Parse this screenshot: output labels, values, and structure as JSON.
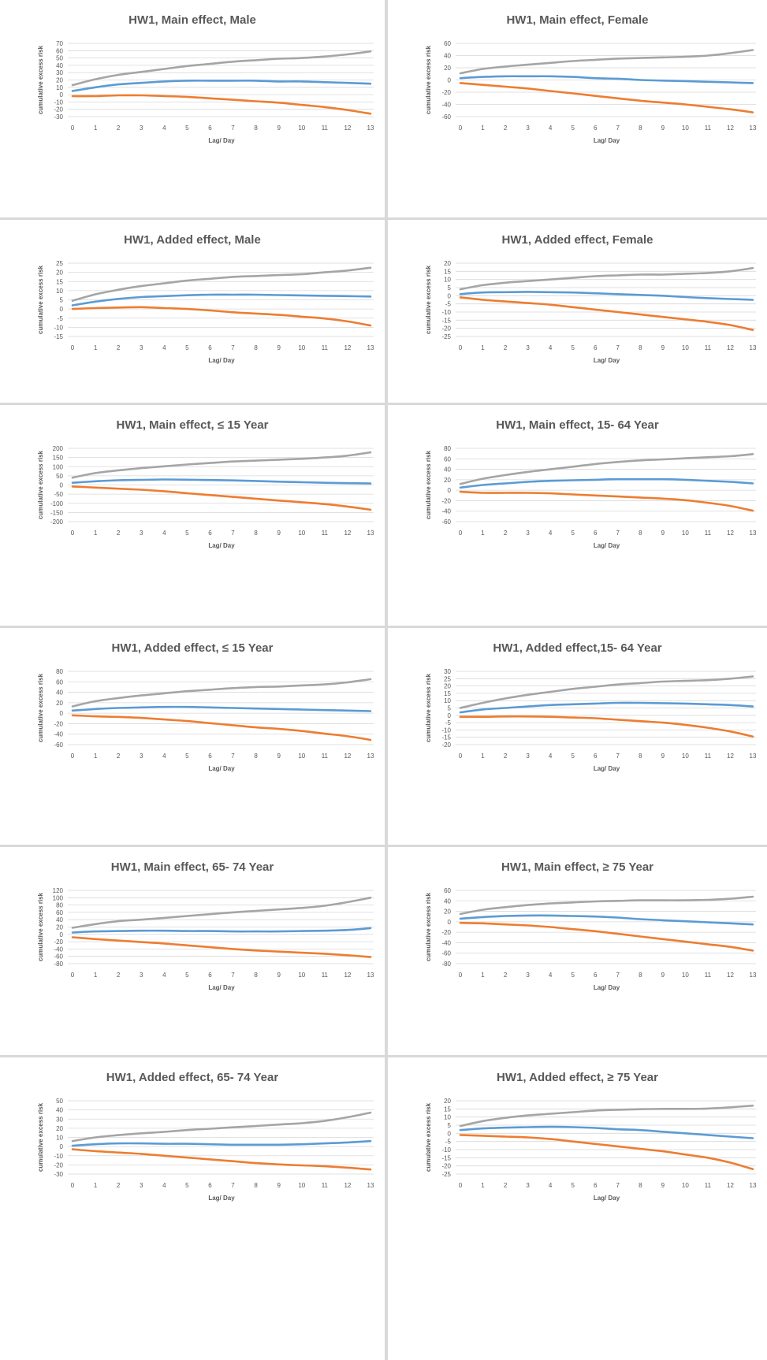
{
  "colors": {
    "upper": "#a5a5a5",
    "estimate": "#5b9bd5",
    "lower": "#ed7d31",
    "grid": "#d9d9d9"
  },
  "chart_data": [
    {
      "type": "line",
      "title": "HW1, Main effect, Male",
      "xlabel": "Lag/ Day",
      "ylabel": "cumulative excess risk",
      "x": [
        0,
        1,
        2,
        3,
        4,
        5,
        6,
        7,
        8,
        9,
        10,
        11,
        12,
        13
      ],
      "yticks": [
        -30,
        -20,
        -10,
        0,
        10,
        20,
        30,
        40,
        50,
        60,
        70
      ],
      "ylim": [
        -30,
        70
      ],
      "series": [
        {
          "role": "upper",
          "values": [
            13,
            21,
            27,
            31,
            35,
            39,
            42,
            45,
            47,
            49,
            50,
            52,
            55,
            59
          ]
        },
        {
          "role": "estimate",
          "values": [
            5,
            10,
            14,
            16,
            18,
            19,
            19,
            19,
            19,
            18,
            18,
            17,
            16,
            15
          ]
        },
        {
          "role": "lower",
          "values": [
            -2,
            -2,
            -1,
            -1,
            -2,
            -3,
            -5,
            -7,
            -9,
            -11,
            -14,
            -17,
            -21,
            -26
          ]
        }
      ]
    },
    {
      "type": "line",
      "title": "HW1, Main effect, Female",
      "xlabel": "Lag/ Day",
      "ylabel": "cumulative excess risk",
      "x": [
        0,
        1,
        2,
        3,
        4,
        5,
        6,
        7,
        8,
        9,
        10,
        11,
        12,
        13
      ],
      "yticks": [
        -60,
        -40,
        -20,
        0,
        20,
        40,
        60
      ],
      "ylim": [
        -60,
        60
      ],
      "series": [
        {
          "role": "upper",
          "values": [
            11,
            18,
            22,
            25,
            28,
            31,
            33,
            35,
            36,
            37,
            38,
            40,
            44,
            49
          ]
        },
        {
          "role": "estimate",
          "values": [
            3,
            5,
            6,
            6,
            6,
            5,
            3,
            2,
            0,
            -1,
            -2,
            -3,
            -4,
            -5
          ]
        },
        {
          "role": "lower",
          "values": [
            -5,
            -8,
            -11,
            -14,
            -18,
            -22,
            -26,
            -30,
            -34,
            -37,
            -40,
            -44,
            -48,
            -53
          ]
        }
      ]
    },
    {
      "type": "line",
      "title": "HW1, Added effect, Male",
      "xlabel": "Lag/ Day",
      "ylabel": "cumulative excess risk",
      "x": [
        0,
        1,
        2,
        3,
        4,
        5,
        6,
        7,
        8,
        9,
        10,
        11,
        12,
        13
      ],
      "yticks": [
        -15,
        -10,
        -5,
        0,
        5,
        10,
        15,
        20,
        25
      ],
      "ylim": [
        -15,
        25
      ],
      "series": [
        {
          "role": "upper",
          "values": [
            4.5,
            8,
            10.5,
            12.5,
            14,
            15.5,
            16.5,
            17.5,
            18,
            18.5,
            19,
            20,
            21,
            22.5
          ]
        },
        {
          "role": "estimate",
          "values": [
            2,
            4,
            5.5,
            6.5,
            7,
            7.5,
            7.8,
            7.8,
            7.8,
            7.6,
            7.4,
            7.2,
            7,
            6.8
          ]
        },
        {
          "role": "lower",
          "values": [
            0,
            0.5,
            0.8,
            1,
            0.5,
            0,
            -0.8,
            -1.8,
            -2.5,
            -3.2,
            -4.2,
            -5.2,
            -6.8,
            -9
          ]
        }
      ]
    },
    {
      "type": "line",
      "title": "HW1, Added effect, Female",
      "xlabel": "Lag/ Day",
      "ylabel": "cumulative excess risk",
      "x": [
        0,
        1,
        2,
        3,
        4,
        5,
        6,
        7,
        8,
        9,
        10,
        11,
        12,
        13
      ],
      "yticks": [
        -25,
        -20,
        -15,
        -10,
        -5,
        0,
        5,
        10,
        15,
        20
      ],
      "ylim": [
        -25,
        20
      ],
      "series": [
        {
          "role": "upper",
          "values": [
            4,
            6.5,
            8,
            9,
            10,
            11,
            12,
            12.5,
            13,
            13,
            13.5,
            14,
            15,
            17
          ]
        },
        {
          "role": "estimate",
          "values": [
            1,
            2,
            2.2,
            2.4,
            2.2,
            2,
            1.5,
            1,
            0.5,
            0,
            -0.8,
            -1.5,
            -2,
            -2.5
          ]
        },
        {
          "role": "lower",
          "values": [
            -1,
            -2.5,
            -3.5,
            -4.5,
            -5.5,
            -7,
            -8.5,
            -10,
            -11.5,
            -13,
            -14.5,
            -16,
            -18,
            -21
          ]
        }
      ]
    },
    {
      "type": "line",
      "title": "HW1, Main effect, ≤ 15 Year",
      "xlabel": "Lag/ Day",
      "ylabel": "cumulative excess risk",
      "x": [
        0,
        1,
        2,
        3,
        4,
        5,
        6,
        7,
        8,
        9,
        10,
        11,
        12,
        13
      ],
      "yticks": [
        -200,
        -150,
        -100,
        -50,
        0,
        50,
        100,
        150,
        200
      ],
      "ylim": [
        -200,
        200
      ],
      "series": [
        {
          "role": "upper",
          "values": [
            40,
            65,
            80,
            92,
            102,
            112,
            120,
            128,
            133,
            138,
            143,
            150,
            160,
            178
          ]
        },
        {
          "role": "estimate",
          "values": [
            12,
            20,
            26,
            28,
            30,
            29,
            27,
            25,
            22,
            18,
            15,
            12,
            10,
            8
          ]
        },
        {
          "role": "lower",
          "values": [
            -8,
            -14,
            -20,
            -26,
            -34,
            -45,
            -55,
            -65,
            -75,
            -85,
            -94,
            -104,
            -118,
            -135
          ]
        }
      ]
    },
    {
      "type": "line",
      "title": "HW1, Main effect, 15- 64 Year",
      "xlabel": "Lag/ Day",
      "ylabel": "cumulative excess risk",
      "x": [
        0,
        1,
        2,
        3,
        4,
        5,
        6,
        7,
        8,
        9,
        10,
        11,
        12,
        13
      ],
      "yticks": [
        -60,
        -40,
        -20,
        0,
        20,
        40,
        60,
        80
      ],
      "ylim": [
        -60,
        80
      ],
      "series": [
        {
          "role": "upper",
          "values": [
            12,
            22,
            29,
            35,
            40,
            45,
            50,
            54,
            57,
            59,
            61,
            63,
            65,
            69
          ]
        },
        {
          "role": "estimate",
          "values": [
            5,
            10,
            13,
            16,
            18,
            19,
            20,
            21,
            21,
            21,
            20,
            18,
            16,
            13
          ]
        },
        {
          "role": "lower",
          "values": [
            -3,
            -5,
            -5,
            -5,
            -6,
            -8,
            -10,
            -12,
            -14,
            -16,
            -19,
            -24,
            -30,
            -39
          ]
        }
      ]
    },
    {
      "type": "line",
      "title": "HW1, Added effect, ≤ 15 Year",
      "xlabel": "Lag/ Day",
      "ylabel": "cumulative excess risk",
      "x": [
        0,
        1,
        2,
        3,
        4,
        5,
        6,
        7,
        8,
        9,
        10,
        11,
        12,
        13
      ],
      "yticks": [
        -60,
        -40,
        -20,
        0,
        20,
        40,
        60,
        80
      ],
      "ylim": [
        -60,
        80
      ],
      "series": [
        {
          "role": "upper",
          "values": [
            13,
            23,
            29,
            34,
            38,
            42,
            45,
            48,
            50,
            51,
            53,
            55,
            59,
            65
          ]
        },
        {
          "role": "estimate",
          "values": [
            5,
            8,
            10,
            11,
            12,
            12,
            11,
            10,
            9,
            8,
            7,
            6,
            5,
            4
          ]
        },
        {
          "role": "lower",
          "values": [
            -4,
            -6,
            -7,
            -9,
            -12,
            -15,
            -19,
            -23,
            -27,
            -30,
            -34,
            -39,
            -44,
            -51
          ]
        }
      ]
    },
    {
      "type": "line",
      "title": "HW1, Added effect,15- 64 Year",
      "xlabel": "Lag/ Day",
      "ylabel": "cumulative excess risk",
      "x": [
        0,
        1,
        2,
        3,
        4,
        5,
        6,
        7,
        8,
        9,
        10,
        11,
        12,
        13
      ],
      "yticks": [
        -20,
        -15,
        -10,
        -5,
        0,
        5,
        10,
        15,
        20,
        25,
        30
      ],
      "ylim": [
        -20,
        30
      ],
      "series": [
        {
          "role": "upper",
          "values": [
            5,
            8.5,
            11.5,
            14,
            16,
            18,
            19.5,
            21,
            22,
            23,
            23.5,
            24,
            25,
            26.5
          ]
        },
        {
          "role": "estimate",
          "values": [
            2,
            4,
            5,
            6,
            7,
            7.5,
            8,
            8.5,
            8.5,
            8.3,
            8,
            7.5,
            7,
            6
          ]
        },
        {
          "role": "lower",
          "values": [
            -1,
            -1,
            -0.8,
            -0.8,
            -1,
            -1.5,
            -2,
            -3,
            -4,
            -5,
            -6.5,
            -8.5,
            -11,
            -14.5
          ]
        }
      ]
    },
    {
      "type": "line",
      "title": "HW1, Main effect, 65- 74 Year",
      "xlabel": "Lag/ Day",
      "ylabel": "cumulative excess risk",
      "x": [
        0,
        1,
        2,
        3,
        4,
        5,
        6,
        7,
        8,
        9,
        10,
        11,
        12,
        13
      ],
      "yticks": [
        -80,
        -60,
        -40,
        -20,
        0,
        20,
        40,
        60,
        80,
        100,
        120
      ],
      "ylim": [
        -80,
        120
      ],
      "series": [
        {
          "role": "upper",
          "values": [
            18,
            28,
            36,
            40,
            45,
            50,
            55,
            60,
            64,
            68,
            72,
            78,
            88,
            100
          ]
        },
        {
          "role": "estimate",
          "values": [
            5,
            8,
            9,
            10,
            10,
            9,
            9,
            8,
            8,
            8,
            9,
            10,
            12,
            17
          ]
        },
        {
          "role": "lower",
          "values": [
            -8,
            -13,
            -17,
            -21,
            -25,
            -30,
            -35,
            -40,
            -44,
            -47,
            -50,
            -53,
            -57,
            -62
          ]
        }
      ]
    },
    {
      "type": "line",
      "title": "HW1, Main effect, ≥ 75 Year",
      "xlabel": "Lag/ Day",
      "ylabel": "cumulative excess risk",
      "x": [
        0,
        1,
        2,
        3,
        4,
        5,
        6,
        7,
        8,
        9,
        10,
        11,
        12,
        13
      ],
      "yticks": [
        -80,
        -60,
        -40,
        -20,
        0,
        20,
        40,
        60
      ],
      "ylim": [
        -80,
        60
      ],
      "series": [
        {
          "role": "upper",
          "values": [
            15,
            23,
            28,
            32,
            35,
            37,
            39,
            40,
            41,
            41,
            41,
            42,
            44,
            48
          ]
        },
        {
          "role": "estimate",
          "values": [
            6,
            9,
            11,
            12,
            12,
            11,
            10,
            8,
            5,
            3,
            1,
            -1,
            -3,
            -5
          ]
        },
        {
          "role": "lower",
          "values": [
            -2,
            -3,
            -5,
            -7,
            -10,
            -14,
            -18,
            -23,
            -28,
            -33,
            -38,
            -43,
            -48,
            -55
          ]
        }
      ]
    },
    {
      "type": "line",
      "title": "HW1, Added effect, 65- 74 Year",
      "xlabel": "Lag/ Day",
      "ylabel": "cumulative excess risk",
      "x": [
        0,
        1,
        2,
        3,
        4,
        5,
        6,
        7,
        8,
        9,
        10,
        11,
        12,
        13
      ],
      "yticks": [
        -30,
        -20,
        -10,
        0,
        10,
        20,
        30,
        40,
        50
      ],
      "ylim": [
        -30,
        50
      ],
      "series": [
        {
          "role": "upper",
          "values": [
            6,
            10,
            12.5,
            14.5,
            16,
            18,
            19.5,
            21,
            22.5,
            24,
            25.5,
            28,
            32,
            37
          ]
        },
        {
          "role": "estimate",
          "values": [
            1,
            2.5,
            3.5,
            3.5,
            3,
            3,
            2.5,
            2,
            2,
            2,
            2.5,
            3.5,
            4.5,
            6
          ]
        },
        {
          "role": "lower",
          "values": [
            -3,
            -5,
            -6.5,
            -8,
            -10,
            -12,
            -14,
            -16,
            -18,
            -19.5,
            -20.5,
            -21.5,
            -23,
            -25
          ]
        }
      ]
    },
    {
      "type": "line",
      "title": "HW1, Added effect, ≥ 75 Year",
      "xlabel": "Lag/ Day",
      "ylabel": "cumulative excess risk",
      "x": [
        0,
        1,
        2,
        3,
        4,
        5,
        6,
        7,
        8,
        9,
        10,
        11,
        12,
        13
      ],
      "yticks": [
        -25,
        -20,
        -15,
        -10,
        -5,
        0,
        5,
        10,
        15,
        20
      ],
      "ylim": [
        -25,
        20
      ],
      "series": [
        {
          "role": "upper",
          "values": [
            4.5,
            7.5,
            9.5,
            11,
            12,
            13,
            14,
            14.5,
            14.8,
            15,
            15,
            15.2,
            16,
            17
          ]
        },
        {
          "role": "estimate",
          "values": [
            2,
            3,
            3.5,
            3.8,
            4,
            3.8,
            3.3,
            2.5,
            2,
            1,
            0,
            -1,
            -2,
            -3
          ]
        },
        {
          "role": "lower",
          "values": [
            -1,
            -1.5,
            -2,
            -2.5,
            -3.5,
            -5,
            -6.5,
            -8,
            -9.5,
            -11,
            -13,
            -15,
            -18,
            -22
          ]
        }
      ]
    }
  ]
}
